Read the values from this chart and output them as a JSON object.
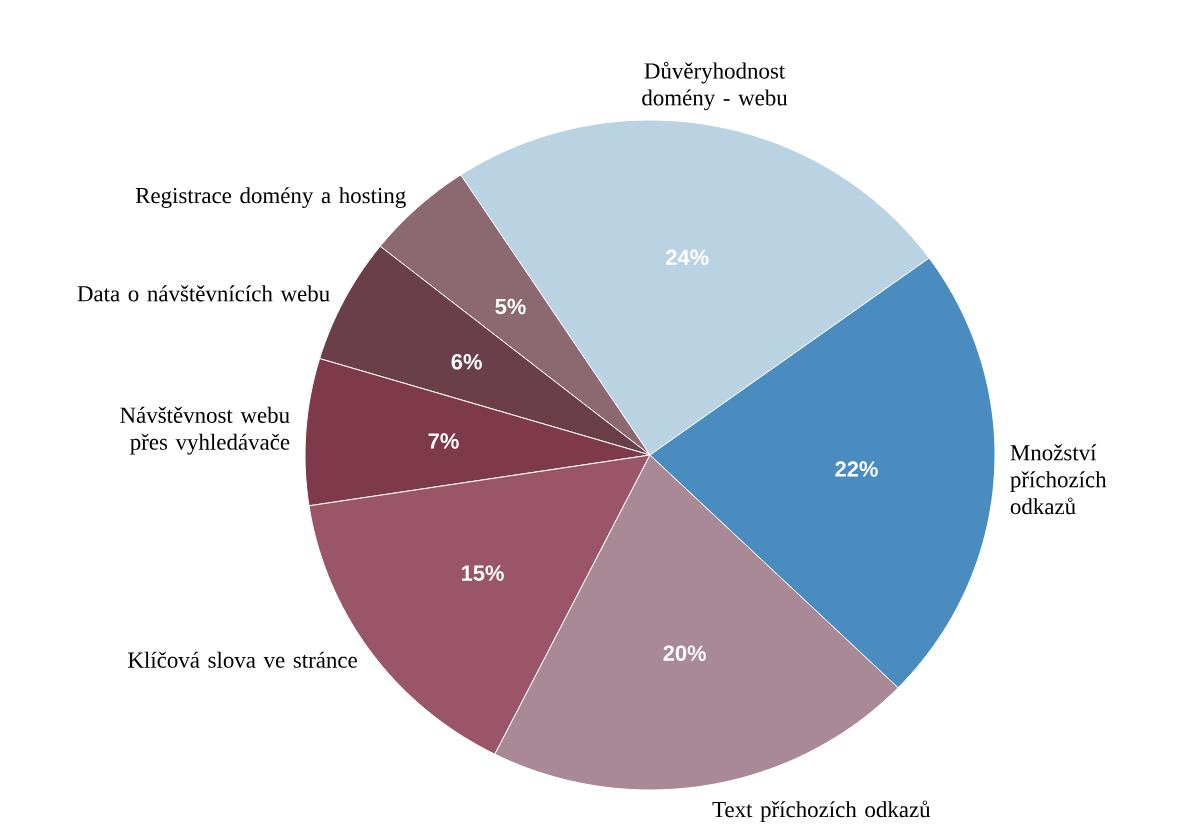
{
  "chart_data": {
    "type": "pie",
    "categories": [
      "Důvěryhodnost domény - webu",
      "Registrace domény a hosting",
      "Data o návštěvnících webu",
      "Návštěvnost webu přes vyhledávače",
      "Klíčová slova ve stránce",
      "Text příchozích odkazů",
      "Množství příchozích odkazů"
    ],
    "values": [
      24,
      5,
      6,
      7,
      15,
      20,
      22
    ],
    "colors": [
      "#b9d3e2",
      "#8c6870",
      "#6a3f4a",
      "#7e3a4a",
      "#9a5668",
      "#a98996",
      "#4a8cbf"
    ],
    "value_labels": [
      "24%",
      "5%",
      "6%",
      "7%",
      "15%",
      "20%",
      "22%"
    ]
  }
}
